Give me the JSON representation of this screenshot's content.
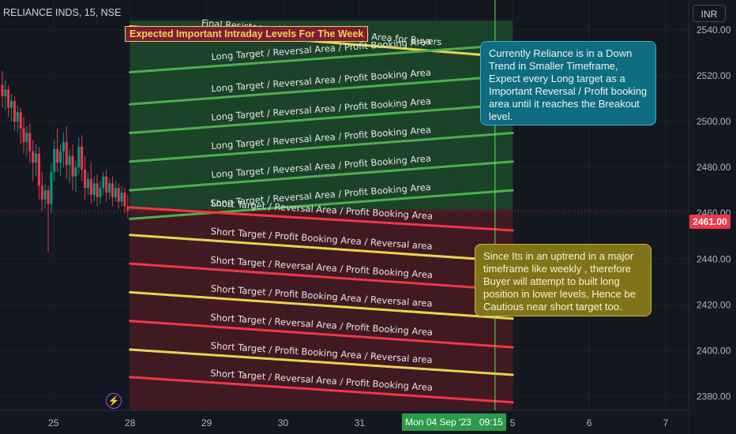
{
  "header": {
    "symbol": "RELIANCE INDS, 15, NSE",
    "currency": "INR"
  },
  "annotations": {
    "title": "Expected Important Intraday Levels For The Week",
    "callout_top": "Currently Reliance is in a Down Trend in Smaller Timeframe, Expect every Long target as a Important Reversal / Profit booking area until it reaches the Breakout level.",
    "callout_bottom": "Since Its in an uptrend in a major timeframe like weekly , therefore Buyer will attempt to built long position in lower levels, Hence be Cautious near short target too."
  },
  "price_tag": "2461.00",
  "time_tag": "Mon 04 Sep '23   09:15",
  "bolt_icon": "⚡",
  "colors": {
    "background": "#131722",
    "long_zone": "#1f4a2a",
    "short_zone": "#4a1a22",
    "long_line": "#4caf50",
    "short_line": "#f23645",
    "yellow_line": "#e8d44d",
    "cursor_line": "#5ce65c",
    "candle_up": "#089981",
    "candle_down": "#f23645"
  },
  "chart_data": {
    "type": "line",
    "title": "Expected Important Intraday Levels For The Week",
    "y_range": [
      2374,
      2553
    ],
    "y_ticks": [
      2380,
      2400,
      2420,
      2440,
      2460,
      2480,
      2500,
      2520,
      2540
    ],
    "y_tick_labels": [
      "2380.00",
      "2400.00",
      "2420.00",
      "2440.00",
      "2460.00",
      "2480.00",
      "2500.00",
      "2520.00",
      "2540.00"
    ],
    "x_tick_labels": [
      "25",
      "28",
      "29",
      "30",
      "31",
      "Sep",
      "5",
      "6",
      "7"
    ],
    "x_range": [
      24.3,
      33.3
    ],
    "x_ticks": [
      25,
      26,
      27,
      28,
      29,
      30,
      31,
      32,
      33
    ],
    "grid": true,
    "current_price": 2461.0,
    "cursor_x": 30.77,
    "levels": [
      {
        "kind": "yellow",
        "label": "Final Resistance / Expected Breakout Area for Buyers",
        "x1": 26.0,
        "y1": 2541.5,
        "x2": 31.0,
        "y2": 2528.0
      },
      {
        "kind": "long",
        "label": "Long Target / Reversal Area / Profit Booking Area",
        "x1": 26.0,
        "y1": 2521.5,
        "x2": 31.0,
        "y2": 2533.5
      },
      {
        "kind": "long",
        "label": "Long Target / Reversal Area / Profit Booking Area",
        "x1": 26.0,
        "y1": 2507.5,
        "x2": 31.0,
        "y2": 2520.0
      },
      {
        "kind": "long",
        "label": "Long Target / Reversal Area / Profit Booking Area",
        "x1": 26.0,
        "y1": 2495.0,
        "x2": 31.0,
        "y2": 2507.5
      },
      {
        "kind": "long",
        "label": "Long Target / Reversal Area / Profit Booking Area",
        "x1": 26.0,
        "y1": 2482.5,
        "x2": 31.0,
        "y2": 2495.0
      },
      {
        "kind": "long",
        "label": "Long Target / Reversal Area / Profit Booking Area",
        "x1": 26.0,
        "y1": 2470.0,
        "x2": 31.0,
        "y2": 2482.5
      },
      {
        "kind": "long",
        "label": "Long Target / Reversal Area / Profit Booking Area",
        "x1": 26.0,
        "y1": 2457.5,
        "x2": 31.0,
        "y2": 2470.0
      },
      {
        "kind": "short",
        "label": "Short Target / Reversal Area / Profit Booking Area",
        "x1": 26.0,
        "y1": 2462.5,
        "x2": 31.0,
        "y2": 2452.5
      },
      {
        "kind": "yellow",
        "label": "Short Target / Profit Booking Area / Reversal area",
        "x1": 26.0,
        "y1": 2450.5,
        "x2": 31.0,
        "y2": 2439.0
      },
      {
        "kind": "short",
        "label": "Short Target / Reversal Area / Profit Booking Area",
        "x1": 26.0,
        "y1": 2438.0,
        "x2": 31.0,
        "y2": 2426.5
      },
      {
        "kind": "yellow",
        "label": "Short Target / Profit Booking Area / Reversal area",
        "x1": 26.0,
        "y1": 2425.5,
        "x2": 31.0,
        "y2": 2414.0
      },
      {
        "kind": "short",
        "label": "Short Target / Reversal Area / Profit Booking Area",
        "x1": 26.0,
        "y1": 2413.0,
        "x2": 31.0,
        "y2": 2401.5
      },
      {
        "kind": "yellow",
        "label": "Short Target / Profit Booking Area / Reversal area",
        "x1": 26.0,
        "y1": 2400.5,
        "x2": 31.0,
        "y2": 2389.5
      },
      {
        "kind": "short",
        "label": "Short Target / Reversal Area / Profit Booking Area",
        "x1": 26.0,
        "y1": 2388.5,
        "x2": 31.0,
        "y2": 2377.5
      }
    ],
    "zones": [
      {
        "kind": "long",
        "x1": 26.0,
        "x2": 31.0,
        "y_top": 2544.0,
        "y_bottom": 2461.5
      },
      {
        "kind": "short",
        "x1": 26.0,
        "x2": 31.0,
        "y_top": 2461.5,
        "y_bottom": 2374.0
      }
    ],
    "candles": [
      {
        "x": 24.33,
        "o": 2516,
        "h": 2522,
        "c": 2511,
        "l": 2506
      },
      {
        "x": 24.37,
        "o": 2511,
        "h": 2518,
        "c": 2514,
        "l": 2505
      },
      {
        "x": 24.41,
        "o": 2514,
        "h": 2516,
        "c": 2506,
        "l": 2502
      },
      {
        "x": 24.45,
        "o": 2506,
        "h": 2512,
        "c": 2509,
        "l": 2500
      },
      {
        "x": 24.49,
        "o": 2509,
        "h": 2511,
        "c": 2500,
        "l": 2496
      },
      {
        "x": 24.53,
        "o": 2500,
        "h": 2507,
        "c": 2504,
        "l": 2495
      },
      {
        "x": 24.57,
        "o": 2504,
        "h": 2506,
        "c": 2497,
        "l": 2490
      },
      {
        "x": 24.61,
        "o": 2497,
        "h": 2502,
        "c": 2491,
        "l": 2486
      },
      {
        "x": 24.65,
        "o": 2491,
        "h": 2498,
        "c": 2495,
        "l": 2485
      },
      {
        "x": 24.69,
        "o": 2495,
        "h": 2499,
        "c": 2487,
        "l": 2482
      },
      {
        "x": 24.73,
        "o": 2487,
        "h": 2492,
        "c": 2482,
        "l": 2474
      },
      {
        "x": 24.77,
        "o": 2482,
        "h": 2490,
        "c": 2486,
        "l": 2476
      },
      {
        "x": 24.81,
        "o": 2486,
        "h": 2489,
        "c": 2472,
        "l": 2466
      },
      {
        "x": 24.85,
        "o": 2472,
        "h": 2478,
        "c": 2466,
        "l": 2461
      },
      {
        "x": 24.89,
        "o": 2466,
        "h": 2473,
        "c": 2470,
        "l": 2462
      },
      {
        "x": 24.93,
        "o": 2470,
        "h": 2472,
        "c": 2464,
        "l": 2443
      },
      {
        "x": 24.97,
        "o": 2464,
        "h": 2482,
        "c": 2478,
        "l": 2460
      },
      {
        "x": 25.01,
        "o": 2478,
        "h": 2492,
        "c": 2488,
        "l": 2474
      },
      {
        "x": 25.05,
        "o": 2488,
        "h": 2497,
        "c": 2482,
        "l": 2478
      },
      {
        "x": 25.09,
        "o": 2482,
        "h": 2490,
        "c": 2487,
        "l": 2476
      },
      {
        "x": 25.13,
        "o": 2487,
        "h": 2495,
        "c": 2491,
        "l": 2480
      },
      {
        "x": 25.17,
        "o": 2491,
        "h": 2498,
        "c": 2481,
        "l": 2475
      },
      {
        "x": 25.21,
        "o": 2481,
        "h": 2488,
        "c": 2485,
        "l": 2473
      },
      {
        "x": 25.25,
        "o": 2485,
        "h": 2490,
        "c": 2476,
        "l": 2470
      },
      {
        "x": 25.29,
        "o": 2476,
        "h": 2483,
        "c": 2480,
        "l": 2469
      },
      {
        "x": 25.33,
        "o": 2480,
        "h": 2493,
        "c": 2489,
        "l": 2477
      },
      {
        "x": 25.37,
        "o": 2489,
        "h": 2494,
        "c": 2479,
        "l": 2474
      },
      {
        "x": 25.41,
        "o": 2479,
        "h": 2485,
        "c": 2471,
        "l": 2466
      },
      {
        "x": 25.45,
        "o": 2471,
        "h": 2478,
        "c": 2475,
        "l": 2468
      },
      {
        "x": 25.49,
        "o": 2475,
        "h": 2482,
        "c": 2468,
        "l": 2464
      },
      {
        "x": 25.53,
        "o": 2468,
        "h": 2476,
        "c": 2473,
        "l": 2465
      },
      {
        "x": 25.57,
        "o": 2473,
        "h": 2477,
        "c": 2467,
        "l": 2463
      },
      {
        "x": 25.61,
        "o": 2467,
        "h": 2474,
        "c": 2471,
        "l": 2464
      },
      {
        "x": 25.65,
        "o": 2471,
        "h": 2478,
        "c": 2476,
        "l": 2468
      },
      {
        "x": 25.69,
        "o": 2476,
        "h": 2479,
        "c": 2469,
        "l": 2465
      },
      {
        "x": 25.73,
        "o": 2469,
        "h": 2475,
        "c": 2473,
        "l": 2466
      },
      {
        "x": 25.77,
        "o": 2473,
        "h": 2476,
        "c": 2467,
        "l": 2463
      },
      {
        "x": 25.81,
        "o": 2467,
        "h": 2474,
        "c": 2471,
        "l": 2465
      },
      {
        "x": 25.85,
        "o": 2471,
        "h": 2473,
        "c": 2465,
        "l": 2462
      },
      {
        "x": 25.89,
        "o": 2465,
        "h": 2472,
        "c": 2469,
        "l": 2463
      },
      {
        "x": 25.93,
        "o": 2469,
        "h": 2471,
        "c": 2463,
        "l": 2460
      },
      {
        "x": 25.97,
        "o": 2463,
        "h": 2468,
        "c": 2461,
        "l": 2458
      }
    ]
  }
}
